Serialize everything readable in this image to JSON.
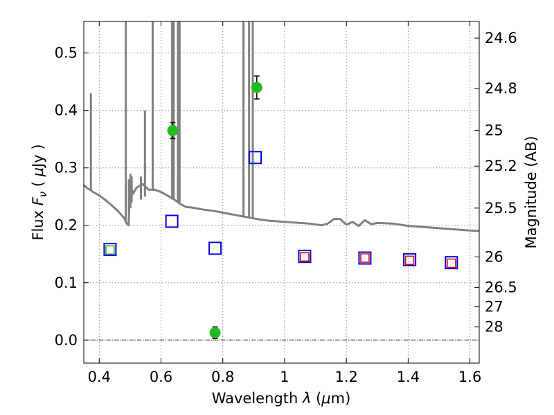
{
  "chart_data": {
    "type": "scatter",
    "title": "",
    "xlabel": "Wavelength  λ (μm)",
    "ylabel": "Flux  F_ν  ( μJy )",
    "ylabel_parts": [
      "Flux  ",
      "F",
      "ν",
      "  ( ",
      "μ",
      "Jy )"
    ],
    "xlabel_parts": [
      "Wavelength  ",
      "λ",
      " (",
      "μ",
      "m)"
    ],
    "y2label": "Magnitude (AB)",
    "xlim": [
      0.35,
      1.63
    ],
    "ylim": [
      -0.04,
      0.555
    ],
    "grid": true,
    "xticks": [
      0.4,
      0.6,
      0.8,
      1.0,
      1.2,
      1.4,
      1.6
    ],
    "xtick_labels": [
      "0.4",
      "0.6",
      "0.8",
      "1",
      "1.2",
      "1.4",
      "1.6"
    ],
    "yticks": [
      0.0,
      0.1,
      0.2,
      0.3,
      0.4,
      0.5
    ],
    "ytick_labels": [
      "0.0",
      "0.1",
      "0.2",
      "0.3",
      "0.4",
      "0.5"
    ],
    "y2ticks": [
      {
        "label": "24.6",
        "flux": 0.526
      },
      {
        "label": "24.8",
        "flux": 0.438
      },
      {
        "label": "25",
        "flux": 0.365
      },
      {
        "label": "25.2",
        "flux": 0.303
      },
      {
        "label": "25.5",
        "flux": 0.23
      },
      {
        "label": "26",
        "flux": 0.145
      },
      {
        "label": "26.5",
        "flux": 0.092
      },
      {
        "label": "27",
        "flux": 0.058
      },
      {
        "label": "28",
        "flux": 0.023
      }
    ],
    "zero_line": 0.0,
    "colors": {
      "sed": "#808080",
      "observed": "#22bb22",
      "model_blue": "#0000dd",
      "model_red": "#dd0000",
      "model_green": "#22aa22",
      "errorbar": "#000000",
      "grid": "#888888"
    },
    "series": [
      {
        "role": "sed-continuum",
        "style": "line",
        "x": [
          0.35,
          0.36,
          0.37,
          0.38,
          0.4,
          0.42,
          0.44,
          0.46,
          0.48,
          0.49,
          0.495,
          0.5,
          0.51,
          0.52,
          0.54,
          0.56,
          0.58,
          0.6,
          0.62,
          0.64,
          0.66,
          0.68,
          0.7,
          0.72,
          0.74,
          0.76,
          0.78,
          0.8,
          0.82,
          0.84,
          0.86,
          0.88,
          0.9,
          0.92,
          0.95,
          1.0,
          1.05,
          1.08,
          1.12,
          1.14,
          1.16,
          1.18,
          1.2,
          1.22,
          1.24,
          1.26,
          1.28,
          1.3,
          1.35,
          1.4,
          1.45,
          1.5,
          1.55,
          1.6,
          1.63
        ],
        "y": [
          0.27,
          0.265,
          0.262,
          0.258,
          0.252,
          0.244,
          0.235,
          0.225,
          0.213,
          0.202,
          0.2,
          0.27,
          0.255,
          0.265,
          0.272,
          0.262,
          0.262,
          0.258,
          0.252,
          0.246,
          0.238,
          0.232,
          0.231,
          0.229,
          0.227,
          0.226,
          0.224,
          0.222,
          0.22,
          0.218,
          0.216,
          0.214,
          0.212,
          0.21,
          0.208,
          0.206,
          0.204,
          0.203,
          0.2,
          0.203,
          0.211,
          0.211,
          0.201,
          0.206,
          0.199,
          0.209,
          0.202,
          0.204,
          0.203,
          0.199,
          0.197,
          0.195,
          0.193,
          0.191,
          0.19
        ]
      },
      {
        "role": "sed-emission-lines",
        "style": "spikes",
        "lines": [
          {
            "x": 0.373,
            "base": 0.262,
            "peak": 0.43
          },
          {
            "x": 0.486,
            "base": 0.205,
            "peak": 0.555
          },
          {
            "x": 0.496,
            "base": 0.215,
            "peak": 0.28
          },
          {
            "x": 0.501,
            "base": 0.23,
            "peak": 0.29
          },
          {
            "x": 0.505,
            "base": 0.24,
            "peak": 0.285
          },
          {
            "x": 0.535,
            "base": 0.245,
            "peak": 0.285
          },
          {
            "x": 0.548,
            "base": 0.25,
            "peak": 0.4
          },
          {
            "x": 0.573,
            "base": 0.26,
            "peak": 0.555
          },
          {
            "x": 0.636,
            "base": 0.245,
            "peak": 0.555
          },
          {
            "x": 0.641,
            "base": 0.245,
            "peak": 0.555
          },
          {
            "x": 0.655,
            "base": 0.24,
            "peak": 0.555
          },
          {
            "x": 0.66,
            "base": 0.24,
            "peak": 0.555
          },
          {
            "x": 0.867,
            "base": 0.215,
            "peak": 0.555
          },
          {
            "x": 0.885,
            "base": 0.215,
            "peak": 0.555
          },
          {
            "x": 0.897,
            "base": 0.212,
            "peak": 0.555
          }
        ]
      },
      {
        "role": "observed",
        "style": "circle-errorbar",
        "points": [
          {
            "x": 0.638,
            "y": 0.365,
            "err": 0.014
          },
          {
            "x": 0.91,
            "y": 0.44,
            "err": 0.02
          },
          {
            "x": 0.775,
            "y": 0.013,
            "err": 0.01
          }
        ]
      },
      {
        "role": "model-blue",
        "style": "open-square",
        "points": [
          {
            "x": 0.435,
            "y": 0.158
          },
          {
            "x": 0.635,
            "y": 0.207
          },
          {
            "x": 0.775,
            "y": 0.16
          },
          {
            "x": 0.905,
            "y": 0.318
          },
          {
            "x": 1.065,
            "y": 0.146
          },
          {
            "x": 1.26,
            "y": 0.143
          },
          {
            "x": 1.405,
            "y": 0.14
          },
          {
            "x": 1.54,
            "y": 0.135
          }
        ]
      },
      {
        "role": "model-red",
        "style": "open-square-small",
        "points": [
          {
            "x": 1.065,
            "y": 0.145
          },
          {
            "x": 1.26,
            "y": 0.143
          },
          {
            "x": 1.405,
            "y": 0.139
          },
          {
            "x": 1.54,
            "y": 0.134
          }
        ]
      },
      {
        "role": "model-green",
        "style": "open-square-small",
        "points": [
          {
            "x": 0.435,
            "y": 0.157
          }
        ]
      }
    ]
  }
}
